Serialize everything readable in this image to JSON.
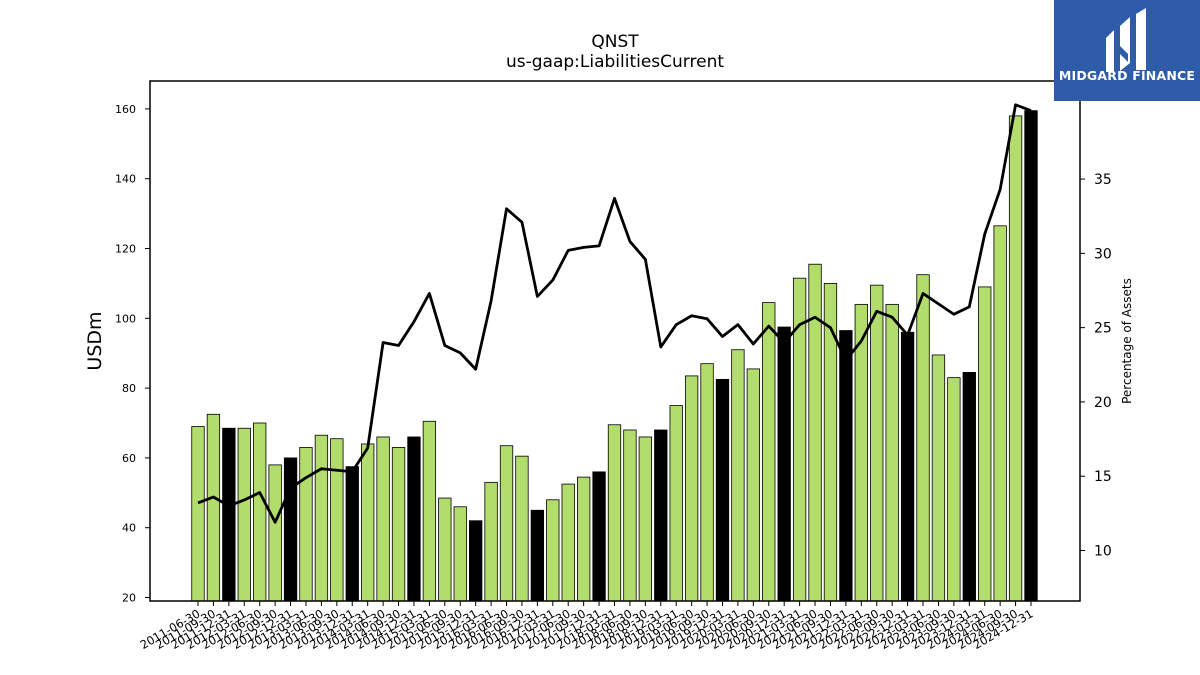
{
  "chart_data": {
    "type": "bar",
    "title": "QNST",
    "subtitle": "us-gaap:LiabilitiesCurrent",
    "ylabel": "USDm",
    "y2label": "Percentage of Assets",
    "ylim": [
      19,
      168
    ],
    "y2lim": [
      6.6,
      41.6
    ],
    "yticks": [
      20,
      40,
      60,
      80,
      100,
      120,
      140,
      160
    ],
    "y2ticks": [
      10,
      15,
      20,
      25,
      30,
      35
    ],
    "bar_color": "#b2dc6b",
    "q4_bar_color": "#000000",
    "line_color": "#000000",
    "categories": [
      "2011-06-30",
      "2011-09-30",
      "2011-12-31",
      "2012-03-31",
      "2012-06-30",
      "2012-09-30",
      "2012-12-31",
      "2013-03-31",
      "2013-06-30",
      "2013-09-30",
      "2013-12-31",
      "2014-03-31",
      "2014-06-30",
      "2014-09-30",
      "2014-12-31",
      "2015-03-31",
      "2015-06-30",
      "2015-09-30",
      "2015-12-31",
      "2016-03-31",
      "2016-06-30",
      "2016-09-30",
      "2016-12-31",
      "2017-03-31",
      "2017-06-30",
      "2017-09-30",
      "2017-12-31",
      "2018-03-31",
      "2018-06-30",
      "2018-09-30",
      "2018-12-31",
      "2019-03-31",
      "2019-06-30",
      "2019-09-30",
      "2019-12-31",
      "2020-03-31",
      "2020-06-30",
      "2020-09-30",
      "2020-12-31",
      "2021-03-31",
      "2021-06-30",
      "2021-09-30",
      "2021-12-31",
      "2022-03-31",
      "2022-06-30",
      "2022-09-30",
      "2022-12-31",
      "2023-03-31",
      "2023-06-30",
      "2023-09-30",
      "2023-12-31",
      "2024-03-31",
      "2024-06-30",
      "2024-09-30",
      "2024-12-31"
    ],
    "series": [
      {
        "type": "bar",
        "values": [
          69,
          72.5,
          68.5,
          68.5,
          70,
          58,
          60,
          63,
          66.5,
          65.5,
          57.5,
          64,
          66,
          63,
          66,
          70.5,
          48.5,
          46,
          42,
          53,
          63.5,
          60.5,
          45,
          48,
          52.5,
          54.5,
          56,
          69.5,
          68,
          66,
          68,
          75,
          83.5,
          87,
          82.5,
          91,
          85.5,
          104.5,
          97.5,
          111.5,
          115.5,
          110,
          96.5,
          104,
          109.5,
          104,
          96,
          112.5,
          89.5,
          83,
          84.5,
          109,
          126.5,
          158,
          159.5
        ],
        "highlight": [
          false,
          false,
          true,
          false,
          false,
          false,
          true,
          false,
          false,
          false,
          true,
          false,
          false,
          false,
          true,
          false,
          false,
          false,
          true,
          false,
          false,
          false,
          true,
          false,
          false,
          false,
          true,
          false,
          false,
          false,
          true,
          false,
          false,
          false,
          true,
          false,
          false,
          false,
          true,
          false,
          false,
          false,
          true,
          false,
          false,
          false,
          true,
          false,
          false,
          false,
          true,
          false,
          false,
          false,
          true
        ]
      },
      {
        "type": "line",
        "axis": "right",
        "values": [
          13.2,
          13.6,
          13.0,
          13.4,
          13.9,
          11.9,
          14.2,
          14.9,
          15.5,
          15.4,
          15.3,
          16.9,
          24.0,
          23.8,
          25.4,
          27.3,
          23.8,
          23.3,
          22.2,
          26.8,
          33.0,
          32.1,
          27.1,
          28.2,
          30.2,
          30.4,
          30.5,
          33.7,
          30.8,
          29.6,
          23.7,
          25.2,
          25.8,
          25.6,
          24.4,
          25.2,
          23.9,
          25.1,
          24.0,
          25.2,
          25.7,
          25.0,
          22.8,
          24.1,
          26.1,
          25.7,
          24.5,
          27.3,
          26.6,
          25.9,
          26.4,
          31.3,
          34.3,
          40.0,
          39.6
        ]
      }
    ]
  },
  "logo": {
    "text": "MIDGARD FINANCE"
  }
}
